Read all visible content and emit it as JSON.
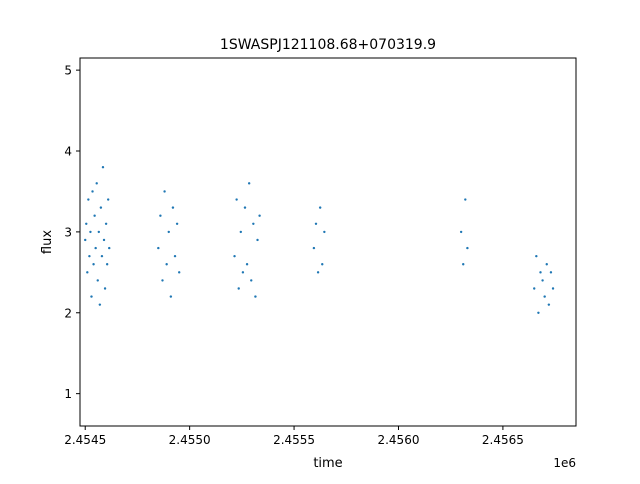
{
  "chart_data": {
    "type": "scatter",
    "title": "1SWASPJ121108.68+070319.9",
    "xlabel": "time",
    "ylabel": "flux",
    "x_offset_label": "1e6",
    "xlim": [
      2454475,
      2456850
    ],
    "ylim": [
      0.6,
      5.15
    ],
    "x_ticks": [
      2454500,
      2455000,
      2455500,
      2456000,
      2456500
    ],
    "x_tick_labels": [
      "2.4545",
      "2.4550",
      "2.4555",
      "2.4560",
      "2.4565"
    ],
    "y_ticks": [
      1,
      2,
      3,
      4,
      5
    ],
    "y_tick_labels": [
      "1",
      "2",
      "3",
      "4",
      "5"
    ],
    "grid": false,
    "marker_color": "#1f77b4",
    "series": [
      {
        "x": [
          2454500,
          2454505,
          2454510,
          2454515,
          2454520,
          2454525,
          2454530,
          2454535,
          2454540,
          2454545,
          2454550,
          2454555,
          2454560,
          2454565,
          2454570,
          2454575,
          2454580,
          2454585,
          2454590,
          2454595,
          2454600,
          2454605,
          2454610,
          2454615,
          2454850,
          2454860,
          2454870,
          2454880,
          2454890,
          2454900,
          2454910,
          2454920,
          2454930,
          2454940,
          2454950,
          2455215,
          2455225,
          2455235,
          2455245,
          2455255,
          2455265,
          2455275,
          2455285,
          2455295,
          2455305,
          2455315,
          2455325,
          2455335,
          2455595,
          2455605,
          2455615,
          2455625,
          2455635,
          2455645,
          2456300,
          2456310,
          2456320,
          2456330,
          2456650,
          2456660,
          2456670,
          2456680,
          2456690,
          2456700,
          2456710,
          2456720,
          2456730,
          2456740
        ],
        "y": [
          2.9,
          3.1,
          2.5,
          3.4,
          2.7,
          3.0,
          2.2,
          3.5,
          2.6,
          3.2,
          2.8,
          3.6,
          2.4,
          3.0,
          2.1,
          3.3,
          2.7,
          3.8,
          2.9,
          2.3,
          3.1,
          2.6,
          3.4,
          2.8,
          2.8,
          3.2,
          2.4,
          3.5,
          2.6,
          3.0,
          2.2,
          3.3,
          2.7,
          3.1,
          2.5,
          2.7,
          3.4,
          2.3,
          3.0,
          2.5,
          3.3,
          2.6,
          3.6,
          2.4,
          3.1,
          2.2,
          2.9,
          3.2,
          2.8,
          3.1,
          2.5,
          3.3,
          2.6,
          3.0,
          3.0,
          2.6,
          3.4,
          2.8,
          2.3,
          2.7,
          2.0,
          2.5,
          2.4,
          2.2,
          2.6,
          2.1,
          2.5,
          2.3
        ]
      }
    ]
  }
}
